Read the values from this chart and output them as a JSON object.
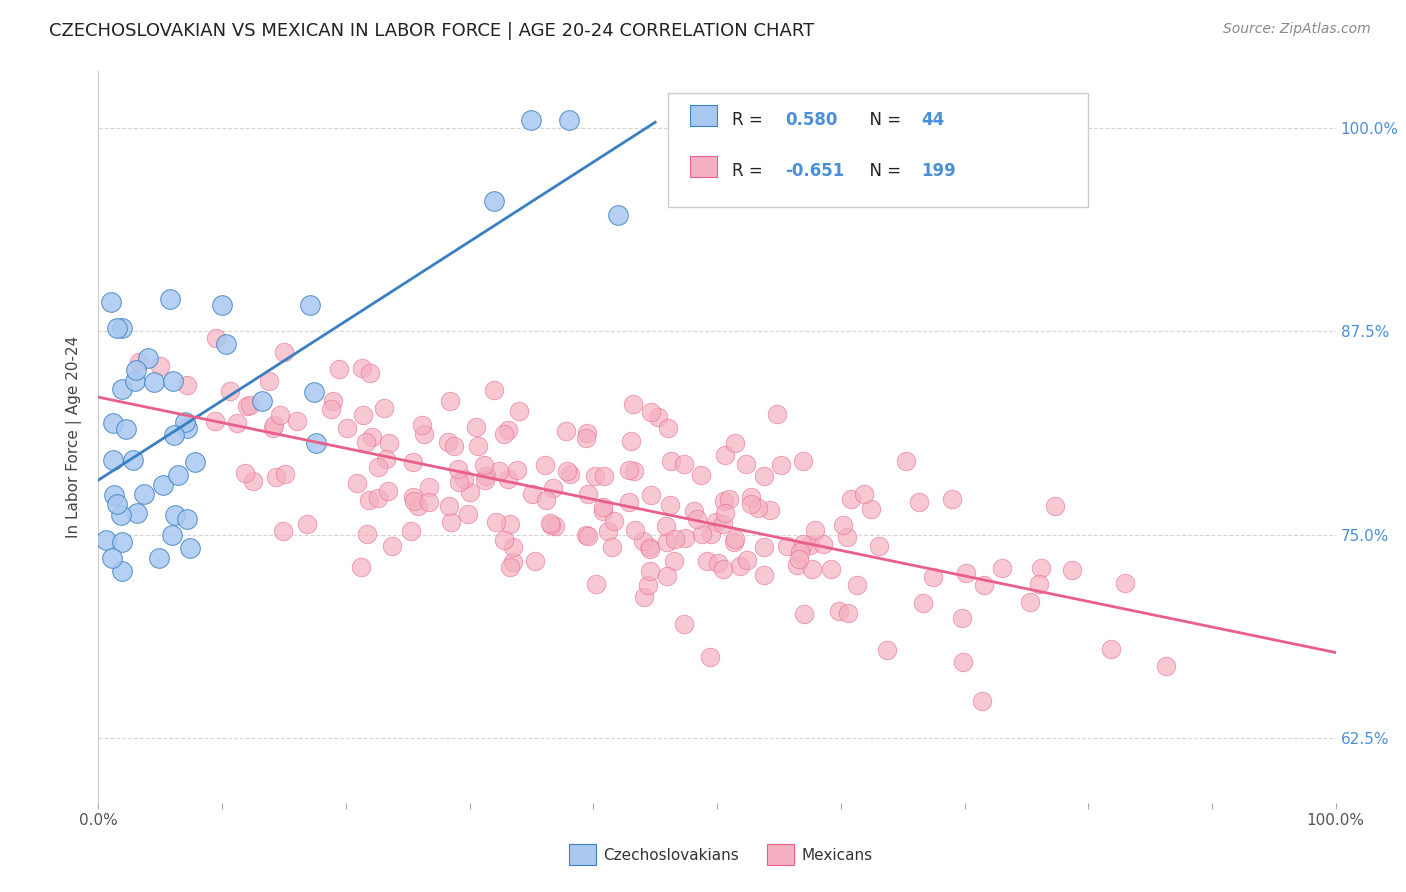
{
  "title": "CZECHOSLOVAKIAN VS MEXICAN IN LABOR FORCE | AGE 20-24 CORRELATION CHART",
  "source": "Source: ZipAtlas.com",
  "ylabel": "In Labor Force | Age 20-24",
  "legend_czech": "Czechoslovakians",
  "legend_mex": "Mexicans",
  "R_czech": 0.58,
  "N_czech": 44,
  "R_mex": -0.651,
  "N_mex": 199,
  "color_czech": "#a8c8f0",
  "color_mex": "#f4b0c0",
  "line_color_czech": "#3a7fc1",
  "line_color_mex": "#e8608a",
  "xlim": [
    0.0,
    1.0
  ],
  "ylim": [
    0.585,
    1.035
  ],
  "y_ticks": [
    0.625,
    0.75,
    0.875,
    1.0
  ],
  "y_tick_labels": [
    "62.5%",
    "75.0%",
    "87.5%",
    "100.0%"
  ],
  "background_color": "#ffffff",
  "grid_color": "#cccccc",
  "title_color": "#222222",
  "axis_label_color": "#444444",
  "ytick_color": "#4a90d9",
  "title_fontsize": 13,
  "source_fontsize": 10,
  "legend_text_color": "#222222",
  "legend_value_color": "#4a90d9"
}
